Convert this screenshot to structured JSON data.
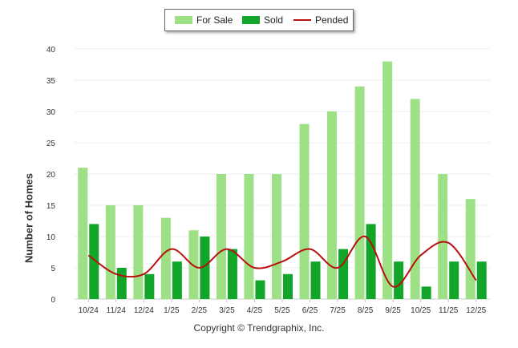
{
  "chart_data": {
    "type": "bar",
    "categories": [
      "10/24",
      "11/24",
      "12/24",
      "1/25",
      "2/25",
      "3/25",
      "4/25",
      "5/25",
      "6/25",
      "7/25",
      "8/25",
      "9/25",
      "10/25",
      "11/25",
      "12/25"
    ],
    "series": [
      {
        "name": "For Sale",
        "type": "bar",
        "color": "#9ee085",
        "values": [
          21,
          15,
          15,
          13,
          11,
          20,
          20,
          20,
          28,
          30,
          34,
          38,
          32,
          20,
          16
        ]
      },
      {
        "name": "Sold",
        "type": "bar",
        "color": "#11a629",
        "values": [
          12,
          5,
          4,
          6,
          10,
          8,
          3,
          4,
          6,
          8,
          12,
          6,
          2,
          6,
          6
        ]
      },
      {
        "name": "Pended",
        "type": "line",
        "color": "#b80f0f",
        "values": [
          7,
          4,
          4,
          8,
          5,
          8,
          5,
          6,
          8,
          5,
          10,
          2,
          7,
          9,
          3
        ]
      }
    ],
    "title": "",
    "xlabel": "",
    "ylabel": "Number of Homes",
    "ylim": [
      0,
      40
    ],
    "yticks": [
      0,
      5,
      10,
      15,
      20,
      25,
      30,
      35,
      40
    ],
    "grid": true,
    "legend_position": "top-center",
    "copyright": "Copyright © Trendgraphix, Inc."
  }
}
